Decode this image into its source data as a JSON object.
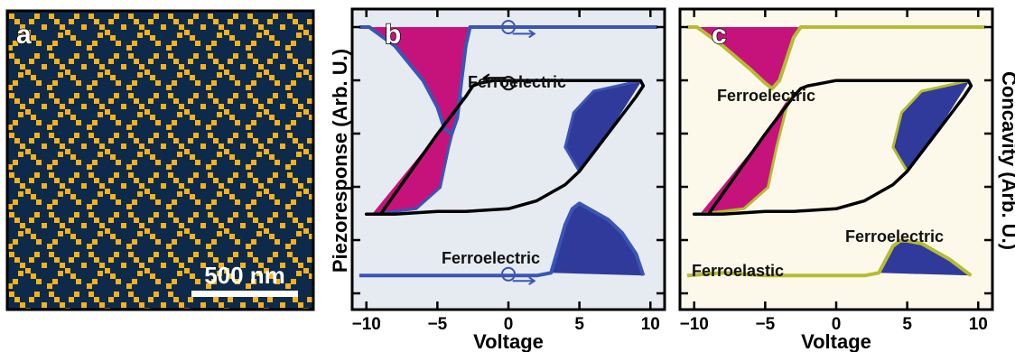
{
  "colors": {
    "map_background": "#0e2a4a",
    "map_domain": "#f5b21c",
    "panel_b_background": "#e6ebf1",
    "panel_c_background": "#fdf9ea",
    "panel_b_line": "#3a55b5",
    "panel_c_line": "#b6bb33",
    "magenta_fill": "#c5137b",
    "blue_fill": "#2f3a9a",
    "hysteresis_line": "#000000"
  },
  "panel_a": {
    "label": "a",
    "scale_bar_label": "500 nm"
  },
  "panel_b": {
    "label": "b",
    "annotation_upper": "Ferroelectric",
    "annotation_lower": "Ferroelectric",
    "ylabel": "Piezoresponse (Arb. U.)"
  },
  "panel_c": {
    "label": "c",
    "annotation_upper": "Ferroelectric",
    "annotation_lower_right": "Ferroelectric",
    "annotation_lower_left": "Ferroelastic",
    "ylabel": "Concavity (Arb. U.)"
  },
  "chart_data": [
    {
      "panel": "b",
      "type": "line",
      "xlabel": "Voltage",
      "ylabel": "Piezoresponse (Arb. U.)",
      "xlim": [
        -11,
        11
      ],
      "ylim": [
        0,
        1
      ],
      "x_ticks": [
        -10,
        -5,
        0,
        5,
        10
      ],
      "grid": false,
      "series": [
        {
          "role": "top-right-axis trace",
          "x": [
            -10.5,
            -9.8,
            -8,
            -6,
            -5,
            -4.5,
            -4,
            -3.6,
            -3.3,
            -3,
            -2.7,
            -2.5,
            0,
            5,
            10,
            10.5
          ],
          "y": [
            1.0,
            1.0,
            0.93,
            0.8,
            0.7,
            0.62,
            0.6,
            0.66,
            0.8,
            0.93,
            1.0,
            1.0,
            1.0,
            1.0,
            1.0,
            1.0
          ]
        },
        {
          "role": "hysteresis loop (piezoresponse)",
          "x": [
            -10,
            -9,
            -7,
            -5,
            -4,
            -3,
            -2.5,
            -2,
            -1,
            0,
            3,
            6,
            9.3,
            9.5,
            9,
            7,
            5,
            4,
            3,
            2,
            0,
            -3,
            -5,
            -8,
            -10
          ],
          "y": [
            0.3,
            0.3,
            0.45,
            0.6,
            0.67,
            0.74,
            0.78,
            0.79,
            0.8,
            0.8,
            0.8,
            0.8,
            0.8,
            0.78,
            0.74,
            0.6,
            0.46,
            0.41,
            0.38,
            0.35,
            0.32,
            0.31,
            0.31,
            0.3,
            0.3
          ]
        },
        {
          "role": "bottom-right-axis trace",
          "x": [
            -10.5,
            -5,
            0,
            2,
            3,
            4,
            4.5,
            5,
            6,
            7,
            8,
            9,
            9.5
          ],
          "y": [
            0.07,
            0.07,
            0.07,
            0.07,
            0.08,
            0.26,
            0.32,
            0.34,
            0.31,
            0.28,
            0.23,
            0.15,
            0.07
          ]
        }
      ]
    },
    {
      "panel": "c",
      "type": "line",
      "xlabel": "Voltage",
      "ylabel": "Concavity (Arb. U.)",
      "xlim": [
        -11,
        11
      ],
      "ylim": [
        0,
        1
      ],
      "x_ticks": [
        -10,
        -5,
        0,
        5,
        10
      ],
      "grid": false,
      "series": [
        {
          "role": "top-right-axis trace",
          "x": [
            -10.5,
            -9.8,
            -8,
            -6,
            -5,
            -4.5,
            -4,
            -3.5,
            -3,
            -2.5,
            0,
            5,
            10,
            10.5
          ],
          "y": [
            1.0,
            1.0,
            0.93,
            0.84,
            0.79,
            0.77,
            0.8,
            0.88,
            0.96,
            1.0,
            1.0,
            1.0,
            1.0,
            1.0
          ]
        },
        {
          "role": "hysteresis loop (concavity)",
          "x": [
            -10,
            -9,
            -7,
            -5,
            -4,
            -3,
            -2.5,
            -2,
            -1,
            0,
            3,
            6,
            9.3,
            9.5,
            9,
            7,
            5,
            4,
            3,
            2,
            0,
            -3,
            -5,
            -8,
            -10
          ],
          "y": [
            0.3,
            0.3,
            0.45,
            0.6,
            0.67,
            0.74,
            0.77,
            0.78,
            0.79,
            0.8,
            0.8,
            0.8,
            0.8,
            0.78,
            0.74,
            0.6,
            0.46,
            0.41,
            0.38,
            0.35,
            0.32,
            0.31,
            0.31,
            0.3,
            0.3
          ]
        },
        {
          "role": "bottom-right-axis trace",
          "x": [
            -10.5,
            -8,
            -5,
            -2,
            0,
            2,
            3,
            4,
            4.5,
            5,
            6,
            7,
            8,
            9,
            9.5
          ],
          "y": [
            0.07,
            0.08,
            0.07,
            0.07,
            0.07,
            0.07,
            0.08,
            0.18,
            0.2,
            0.2,
            0.19,
            0.16,
            0.13,
            0.09,
            0.07
          ]
        }
      ]
    }
  ]
}
